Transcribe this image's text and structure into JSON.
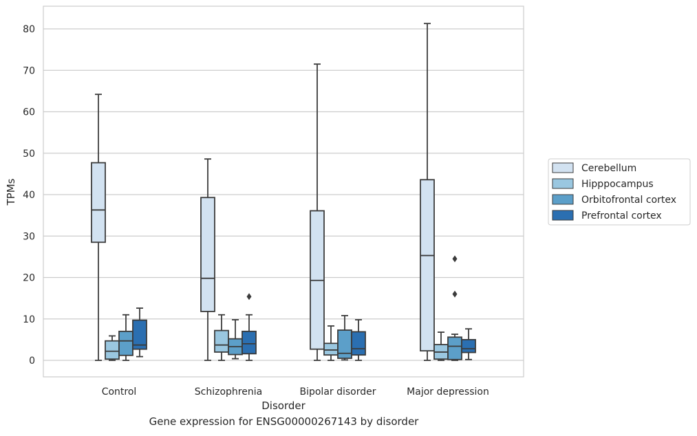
{
  "caption": "Gene expression for ENSG00000267143 by disorder",
  "colors": {
    "Cerebellum": "#d2e2f1",
    "Hipppocampus": "#9ac7e0",
    "Orbitofrontal cortex": "#5c9fc9",
    "Prefrontal cortex": "#2b6fb1",
    "grid": "#cccccc",
    "frame": "#cccccc",
    "line": "#3b3b3b"
  },
  "chart_data": {
    "type": "boxplot",
    "xlabel": "Disorder",
    "ylabel": "TPMs",
    "ylim": [
      -4,
      85
    ],
    "yticks": [
      0,
      10,
      20,
      30,
      40,
      50,
      60,
      70,
      80
    ],
    "grid": true,
    "legend_position": "right",
    "categories": [
      "Control",
      "Schizophrenia",
      "Bipolar disorder",
      "Major depression"
    ],
    "series": [
      {
        "name": "Cerebellum",
        "boxes": [
          {
            "whislo": 0,
            "q1": 28.5,
            "med": 36.3,
            "q3": 47.7,
            "whishi": 64.2,
            "fliers": []
          },
          {
            "whislo": 0,
            "q1": 11.8,
            "med": 19.8,
            "q3": 39.3,
            "whishi": 48.6,
            "fliers": []
          },
          {
            "whislo": 0,
            "q1": 2.7,
            "med": 19.3,
            "q3": 36.1,
            "whishi": 71.5,
            "fliers": []
          },
          {
            "whislo": 0,
            "q1": 2.3,
            "med": 25.3,
            "q3": 43.6,
            "whishi": 81.3,
            "fliers": []
          }
        ]
      },
      {
        "name": "Hipppocampus",
        "boxes": [
          {
            "whislo": 0,
            "q1": 0.3,
            "med": 2.2,
            "q3": 4.7,
            "whishi": 5.9,
            "fliers": []
          },
          {
            "whislo": 0,
            "q1": 2.0,
            "med": 3.7,
            "q3": 7.2,
            "whishi": 11.0,
            "fliers": []
          },
          {
            "whislo": 0,
            "q1": 1.3,
            "med": 2.5,
            "q3": 4.1,
            "whishi": 8.3,
            "fliers": []
          },
          {
            "whislo": 0,
            "q1": 0.3,
            "med": 2.0,
            "q3": 3.8,
            "whishi": 6.8,
            "fliers": []
          }
        ]
      },
      {
        "name": "Orbitofrontal cortex",
        "boxes": [
          {
            "whislo": 0,
            "q1": 1.2,
            "med": 4.7,
            "q3": 7.0,
            "whishi": 11.0,
            "fliers": []
          },
          {
            "whislo": 0.4,
            "q1": 1.4,
            "med": 3.3,
            "q3": 5.2,
            "whishi": 9.8,
            "fliers": []
          },
          {
            "whislo": 0.1,
            "q1": 0.5,
            "med": 1.7,
            "q3": 7.3,
            "whishi": 10.8,
            "fliers": []
          },
          {
            "whislo": 0,
            "q1": 0.2,
            "med": 3.4,
            "q3": 5.6,
            "whishi": 6.3,
            "fliers": [
              16.0,
              24.5
            ]
          }
        ]
      },
      {
        "name": "Prefrontal cortex",
        "boxes": [
          {
            "whislo": 0.9,
            "q1": 2.7,
            "med": 3.7,
            "q3": 9.7,
            "whishi": 12.6,
            "fliers": []
          },
          {
            "whislo": 0,
            "q1": 1.6,
            "med": 4.0,
            "q3": 7.0,
            "whishi": 11.0,
            "fliers": [
              15.4
            ]
          },
          {
            "whislo": 0,
            "q1": 1.3,
            "med": 2.8,
            "q3": 6.9,
            "whishi": 9.8,
            "fliers": []
          },
          {
            "whislo": 0.2,
            "q1": 1.9,
            "med": 2.8,
            "q3": 5.0,
            "whishi": 7.6,
            "fliers": []
          }
        ]
      }
    ]
  }
}
